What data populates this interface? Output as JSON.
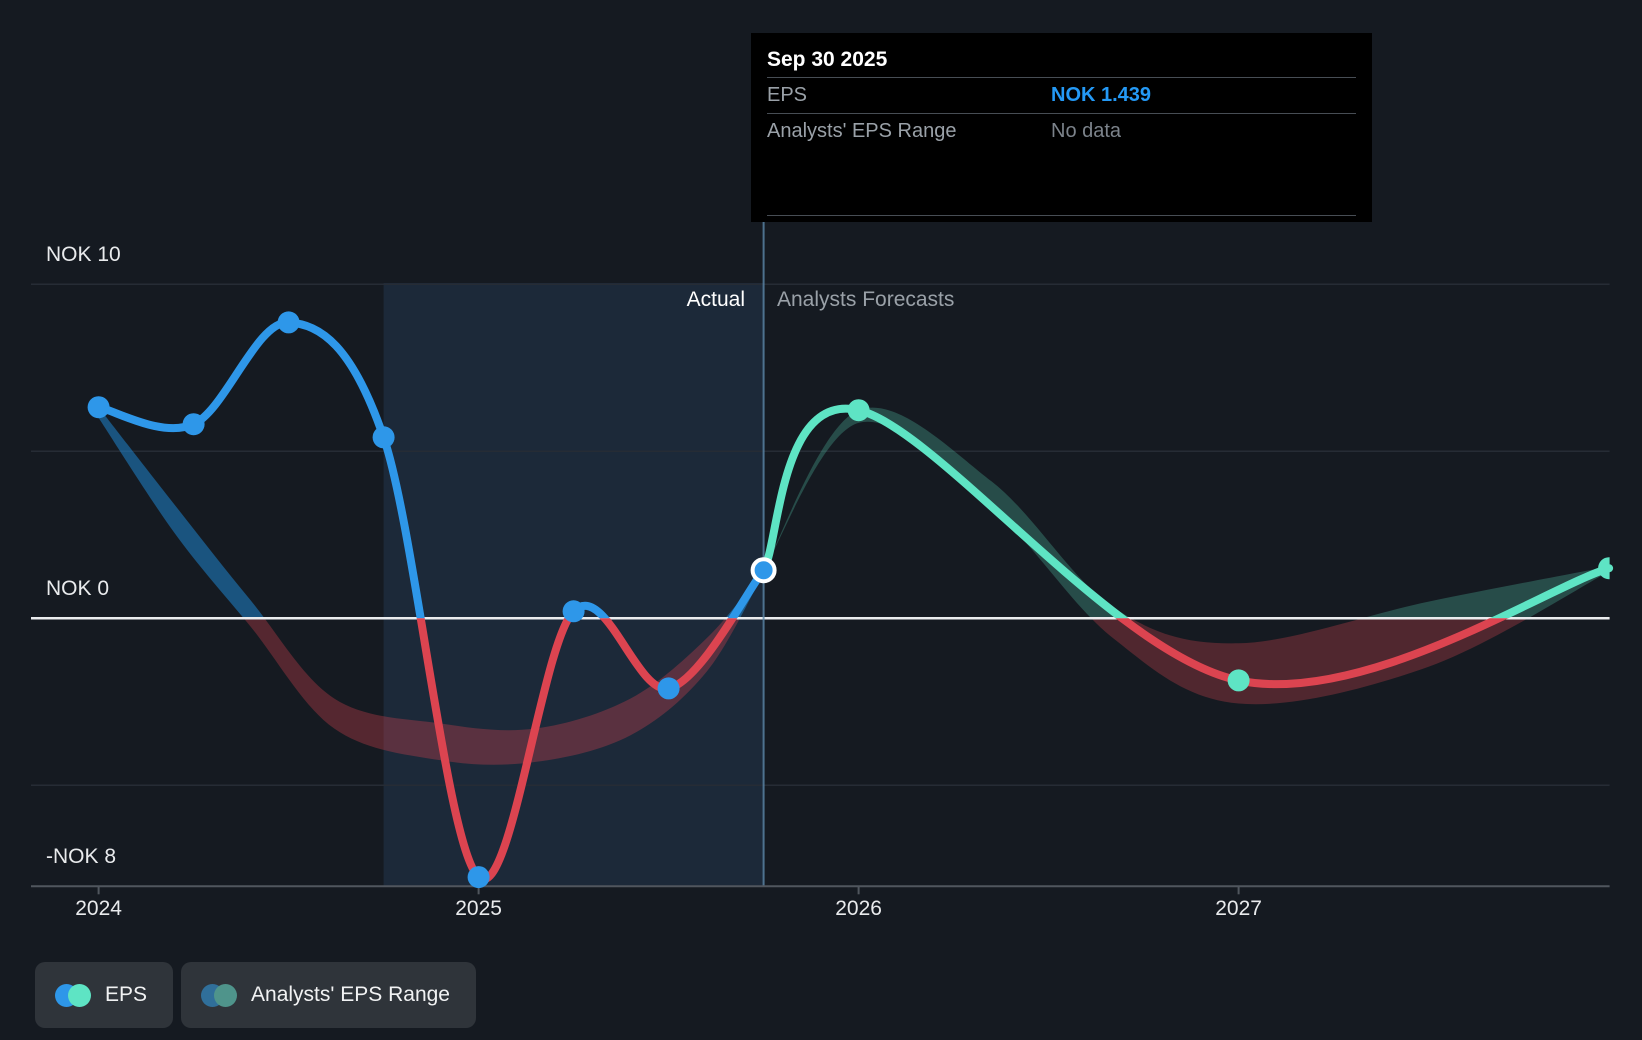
{
  "page": {
    "background": "#151A21"
  },
  "tooltip": {
    "title": "Sep 30 2025",
    "rows": [
      {
        "label": "EPS",
        "value": "NOK 1.439",
        "value_color": "#2499F5"
      },
      {
        "label": "Analysts' EPS Range",
        "value": "No data",
        "value_color": "#7C838B"
      }
    ]
  },
  "zones": {
    "actual_label": "Actual",
    "forecast_label": "Analysts Forecasts"
  },
  "legend": {
    "items": [
      {
        "label": "EPS",
        "dot_colors": [
          "#2E97E9",
          "#5EE4C4"
        ]
      },
      {
        "label": "Analysts' EPS Range",
        "dot_colors": [
          "#306F9A",
          "#4F948B"
        ]
      }
    ]
  },
  "chart_data": {
    "type": "line",
    "unit": "NOK",
    "x_axis": {
      "tick_labels": [
        "2024",
        "2025",
        "2026",
        "2027"
      ],
      "tick_positions": [
        2024,
        2025,
        2026,
        2027
      ],
      "range": [
        2023.83,
        2027.98
      ]
    },
    "y_axis": {
      "tick_labels": [
        "NOK 10",
        "NOK 0",
        "-NOK 8"
      ],
      "tick_values": [
        10,
        0,
        -8
      ],
      "gridline_values": [
        10,
        5,
        -5
      ],
      "range": [
        -8.05,
        10.05
      ]
    },
    "actual_period": {
      "start": 2024.75,
      "end": 2025.75
    },
    "hover": {
      "date": "Sep 30 2025",
      "t": 2025.75,
      "eps": 1.439,
      "range": "No data"
    },
    "series": [
      {
        "name": "EPS (actual)",
        "markers": "all",
        "points": [
          {
            "date": "Dec 31 2023",
            "t": 2024.0,
            "value": 6.32
          },
          {
            "date": "Mar 31 2024",
            "t": 2024.25,
            "value": 5.81
          },
          {
            "date": "Jun 30 2024",
            "t": 2024.5,
            "value": 8.86
          },
          {
            "date": "Sep 30 2024",
            "t": 2024.75,
            "value": 5.42
          },
          {
            "date": "Dec 31 2024",
            "t": 2025.0,
            "value": -7.75
          },
          {
            "date": "Mar 31 2025",
            "t": 2025.25,
            "value": 0.21
          },
          {
            "date": "Jun 30 2025",
            "t": 2025.5,
            "value": -2.1
          },
          {
            "date": "Sep 30 2025",
            "t": 2025.75,
            "value": 1.439
          }
        ]
      },
      {
        "name": "EPS (analysts forecast)",
        "markers": [
          2026.0,
          2027.0,
          2027.975
        ],
        "points": [
          {
            "date": "Sep 30 2025",
            "t": 2025.75,
            "value": 1.439
          },
          {
            "date": "Dec 31 2025",
            "t": 2026.0,
            "value": 6.23
          },
          {
            "date": "Dec 31 2026",
            "t": 2027.0,
            "value": -1.86
          },
          {
            "date": "Dec 31 2027",
            "t": 2027.975,
            "value": 1.5
          }
        ]
      }
    ],
    "bands": [
      {
        "name": "Analysts' EPS Range (actual period)",
        "points": [
          {
            "t": 2024.0,
            "top": 6.32,
            "bottom": 6.0
          },
          {
            "t": 2024.2,
            "top": 3.4,
            "bottom": 2.55
          },
          {
            "t": 2024.4,
            "top": 0.54,
            "bottom": -0.25
          },
          {
            "t": 2024.62,
            "top": -2.4,
            "bottom": -3.3
          },
          {
            "t": 2024.9,
            "top": -3.15,
            "bottom": -4.25
          },
          {
            "t": 2025.15,
            "top": -3.3,
            "bottom": -4.3
          },
          {
            "t": 2025.4,
            "top": -2.4,
            "bottom": -3.5
          },
          {
            "t": 2025.6,
            "top": -0.6,
            "bottom": -1.6
          },
          {
            "t": 2025.75,
            "top": 1.44,
            "bottom": 1.35
          }
        ]
      },
      {
        "name": "Analysts' EPS Range (forecast period)",
        "points": [
          {
            "t": 2025.75,
            "top": 1.44,
            "bottom": 1.44
          },
          {
            "t": 2026.0,
            "top": 6.23,
            "bottom": 5.85
          },
          {
            "t": 2026.35,
            "top": 4.1,
            "bottom": 3.3
          },
          {
            "t": 2026.67,
            "top": 0.33,
            "bottom": -0.6
          },
          {
            "t": 2027.0,
            "top": -0.75,
            "bottom": -2.55
          },
          {
            "t": 2027.5,
            "top": 0.5,
            "bottom": -1.45
          },
          {
            "t": 2027.975,
            "top": 1.55,
            "bottom": 1.4
          }
        ]
      }
    ],
    "colors": {
      "eps_line": "#2E97E9",
      "forecast_line": "#5EE4C4",
      "below_zero_line": "#DC4450",
      "range_actual_above": "rgba(31,133,205,0.55)",
      "range_actual_below": "rgba(220,68,80,0.32)",
      "range_forecast_above": "rgba(95,229,197,0.25)",
      "range_forecast_below": "rgba(220,68,80,0.30)",
      "highlight": "rgba(80,160,230,0.12)",
      "zero_line": "#EAECEE",
      "gridline": "#262C35",
      "axis_line": "#50565E",
      "divider": "#5B87A8",
      "marker_ring": "#FFFFFF"
    }
  }
}
